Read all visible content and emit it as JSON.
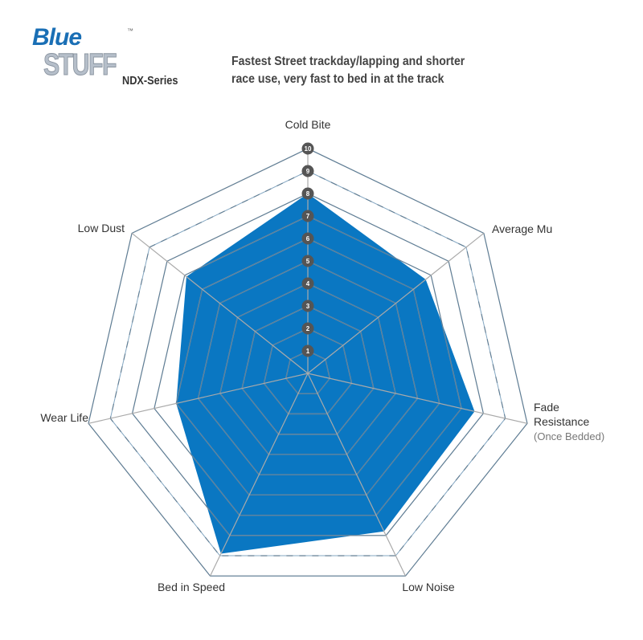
{
  "header": {
    "logo_text": [
      "Blue",
      "STUFF"
    ],
    "logo_tm": "™",
    "series": "NDX-Series",
    "description": [
      "Fastest Street trackday/lapping and shorter",
      "race use, very fast to bed in at the track"
    ]
  },
  "chart_data": {
    "type": "radar",
    "axes": [
      {
        "label": [
          "Cold Bite"
        ]
      },
      {
        "label": [
          "Average Mu"
        ]
      },
      {
        "label": [
          "Fade",
          "Resistance"
        ],
        "sublabel": "(Once Bedded)"
      },
      {
        "label": [
          "Low Noise"
        ]
      },
      {
        "label": [
          "Bed in Speed"
        ]
      },
      {
        "label": [
          "Wear Life"
        ]
      },
      {
        "label": [
          "Low Dust"
        ]
      }
    ],
    "scale_ticks": [
      "1",
      "2",
      "3",
      "4",
      "5",
      "6",
      "7",
      "8",
      "9",
      "10"
    ],
    "range": [
      0,
      10
    ],
    "values": [
      8.0,
      6.7,
      7.6,
      7.8,
      8.9,
      6.0,
      6.9
    ],
    "fill_color": "#0a77c2",
    "grid_color": "#aaaaaa",
    "badge_color": "#555555"
  }
}
